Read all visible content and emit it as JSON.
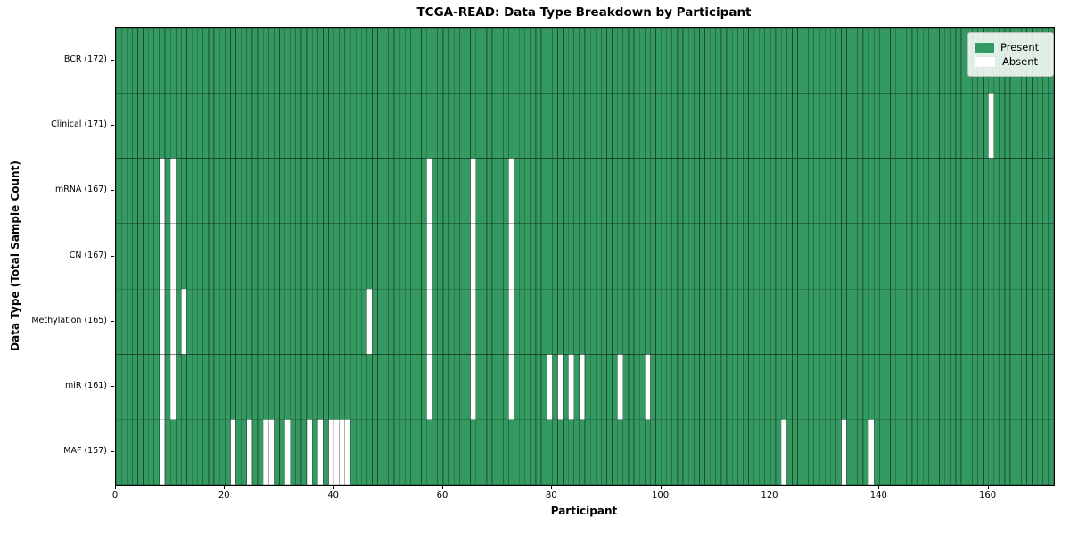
{
  "chart_data": {
    "type": "heatmap",
    "title": "TCGA-READ: Data Type Breakdown by Participant",
    "xlabel": "Participant",
    "ylabel": "Data Type (Total Sample Count)",
    "x_ticks": [
      0,
      20,
      40,
      60,
      80,
      100,
      120,
      140,
      160
    ],
    "x_range": [
      0,
      172
    ],
    "n_participants": 172,
    "grid": "cell-edges",
    "legend_position": "upper-right",
    "legend": [
      {
        "label": "Present",
        "color": "#349a62"
      },
      {
        "label": "Absent",
        "color": "#ffffff"
      }
    ],
    "colors": {
      "present": "#349a62",
      "absent": "#ffffff",
      "cell_edge": "rgba(0,0,0,0.38)",
      "frame": "#000000"
    },
    "rows": [
      {
        "label": "BCR (172)",
        "name": "BCR",
        "total": 172,
        "absent_participants": []
      },
      {
        "label": "Clinical (171)",
        "name": "Clinical",
        "total": 171,
        "absent_participants": [
          160
        ]
      },
      {
        "label": "mRNA (167)",
        "name": "mRNA",
        "total": 167,
        "absent_participants": [
          8,
          10,
          57,
          65,
          72
        ]
      },
      {
        "label": "CN (167)",
        "name": "CN",
        "total": 167,
        "absent_participants": [
          8,
          10,
          57,
          65,
          72
        ]
      },
      {
        "label": "Methylation (165)",
        "name": "Methylation",
        "total": 165,
        "absent_participants": [
          8,
          10,
          12,
          46,
          57,
          65,
          72
        ]
      },
      {
        "label": "miR (161)",
        "name": "miR",
        "total": 161,
        "absent_participants": [
          8,
          10,
          57,
          65,
          72,
          79,
          81,
          83,
          85,
          92,
          97
        ]
      },
      {
        "label": "MAF (157)",
        "name": "MAF",
        "total": 157,
        "absent_participants": [
          8,
          21,
          24,
          27,
          28,
          31,
          35,
          37,
          39,
          40,
          41,
          42,
          122,
          133,
          138
        ]
      }
    ]
  }
}
